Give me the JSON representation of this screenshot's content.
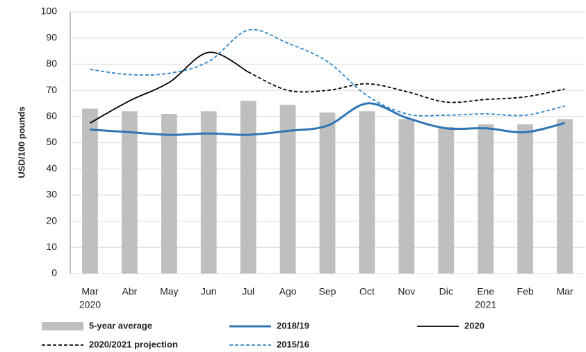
{
  "chart_data": {
    "type": "combo",
    "y_label": "USD/100 pounds",
    "categories": [
      "Mar",
      "Abr",
      "May",
      "Jun",
      "Jul",
      "Ago",
      "Sep",
      "Oct",
      "Nov",
      "Dic",
      "Ene",
      "Feb",
      "Mar"
    ],
    "category_sublabels": [
      "2020",
      null,
      null,
      null,
      null,
      null,
      null,
      null,
      null,
      null,
      "2021",
      null,
      null
    ],
    "ylim": [
      0,
      100
    ],
    "yticks": [
      0,
      10,
      20,
      30,
      40,
      50,
      60,
      70,
      80,
      90,
      100
    ],
    "grid": true,
    "series": [
      {
        "name": "5-year average",
        "type": "bar",
        "color": "#bfbfbf",
        "values": [
          63,
          62,
          61,
          62,
          66,
          64.5,
          61.5,
          62,
          59,
          56,
          57,
          57,
          59
        ]
      },
      {
        "name": "2018/19",
        "type": "line",
        "color": "#2e75b6",
        "dashed": false,
        "width": 3,
        "values": [
          55,
          54,
          53,
          53.5,
          53,
          54.5,
          56.5,
          65,
          59.5,
          55.5,
          55.5,
          54,
          57.5
        ]
      },
      {
        "name": "2020",
        "type": "line",
        "color": "#000000",
        "dashed": false,
        "width": 1.8,
        "values": [
          57.5,
          66,
          73,
          84.5,
          77,
          null,
          null,
          null,
          null,
          null,
          null,
          null,
          null
        ]
      },
      {
        "name": "2020/2021 projection",
        "type": "line",
        "color": "#000000",
        "dashed": true,
        "width": 1.8,
        "values": [
          null,
          null,
          null,
          null,
          77,
          70,
          70,
          72.5,
          69.5,
          65.5,
          66.5,
          67.5,
          70.5
        ]
      },
      {
        "name": "2015/16",
        "type": "line",
        "color": "#2e86c8",
        "dashed": true,
        "width": 1.8,
        "values": [
          78,
          76,
          76.5,
          81,
          93,
          88,
          81,
          68,
          61,
          60.5,
          61,
          60.5,
          64
        ]
      }
    ]
  }
}
